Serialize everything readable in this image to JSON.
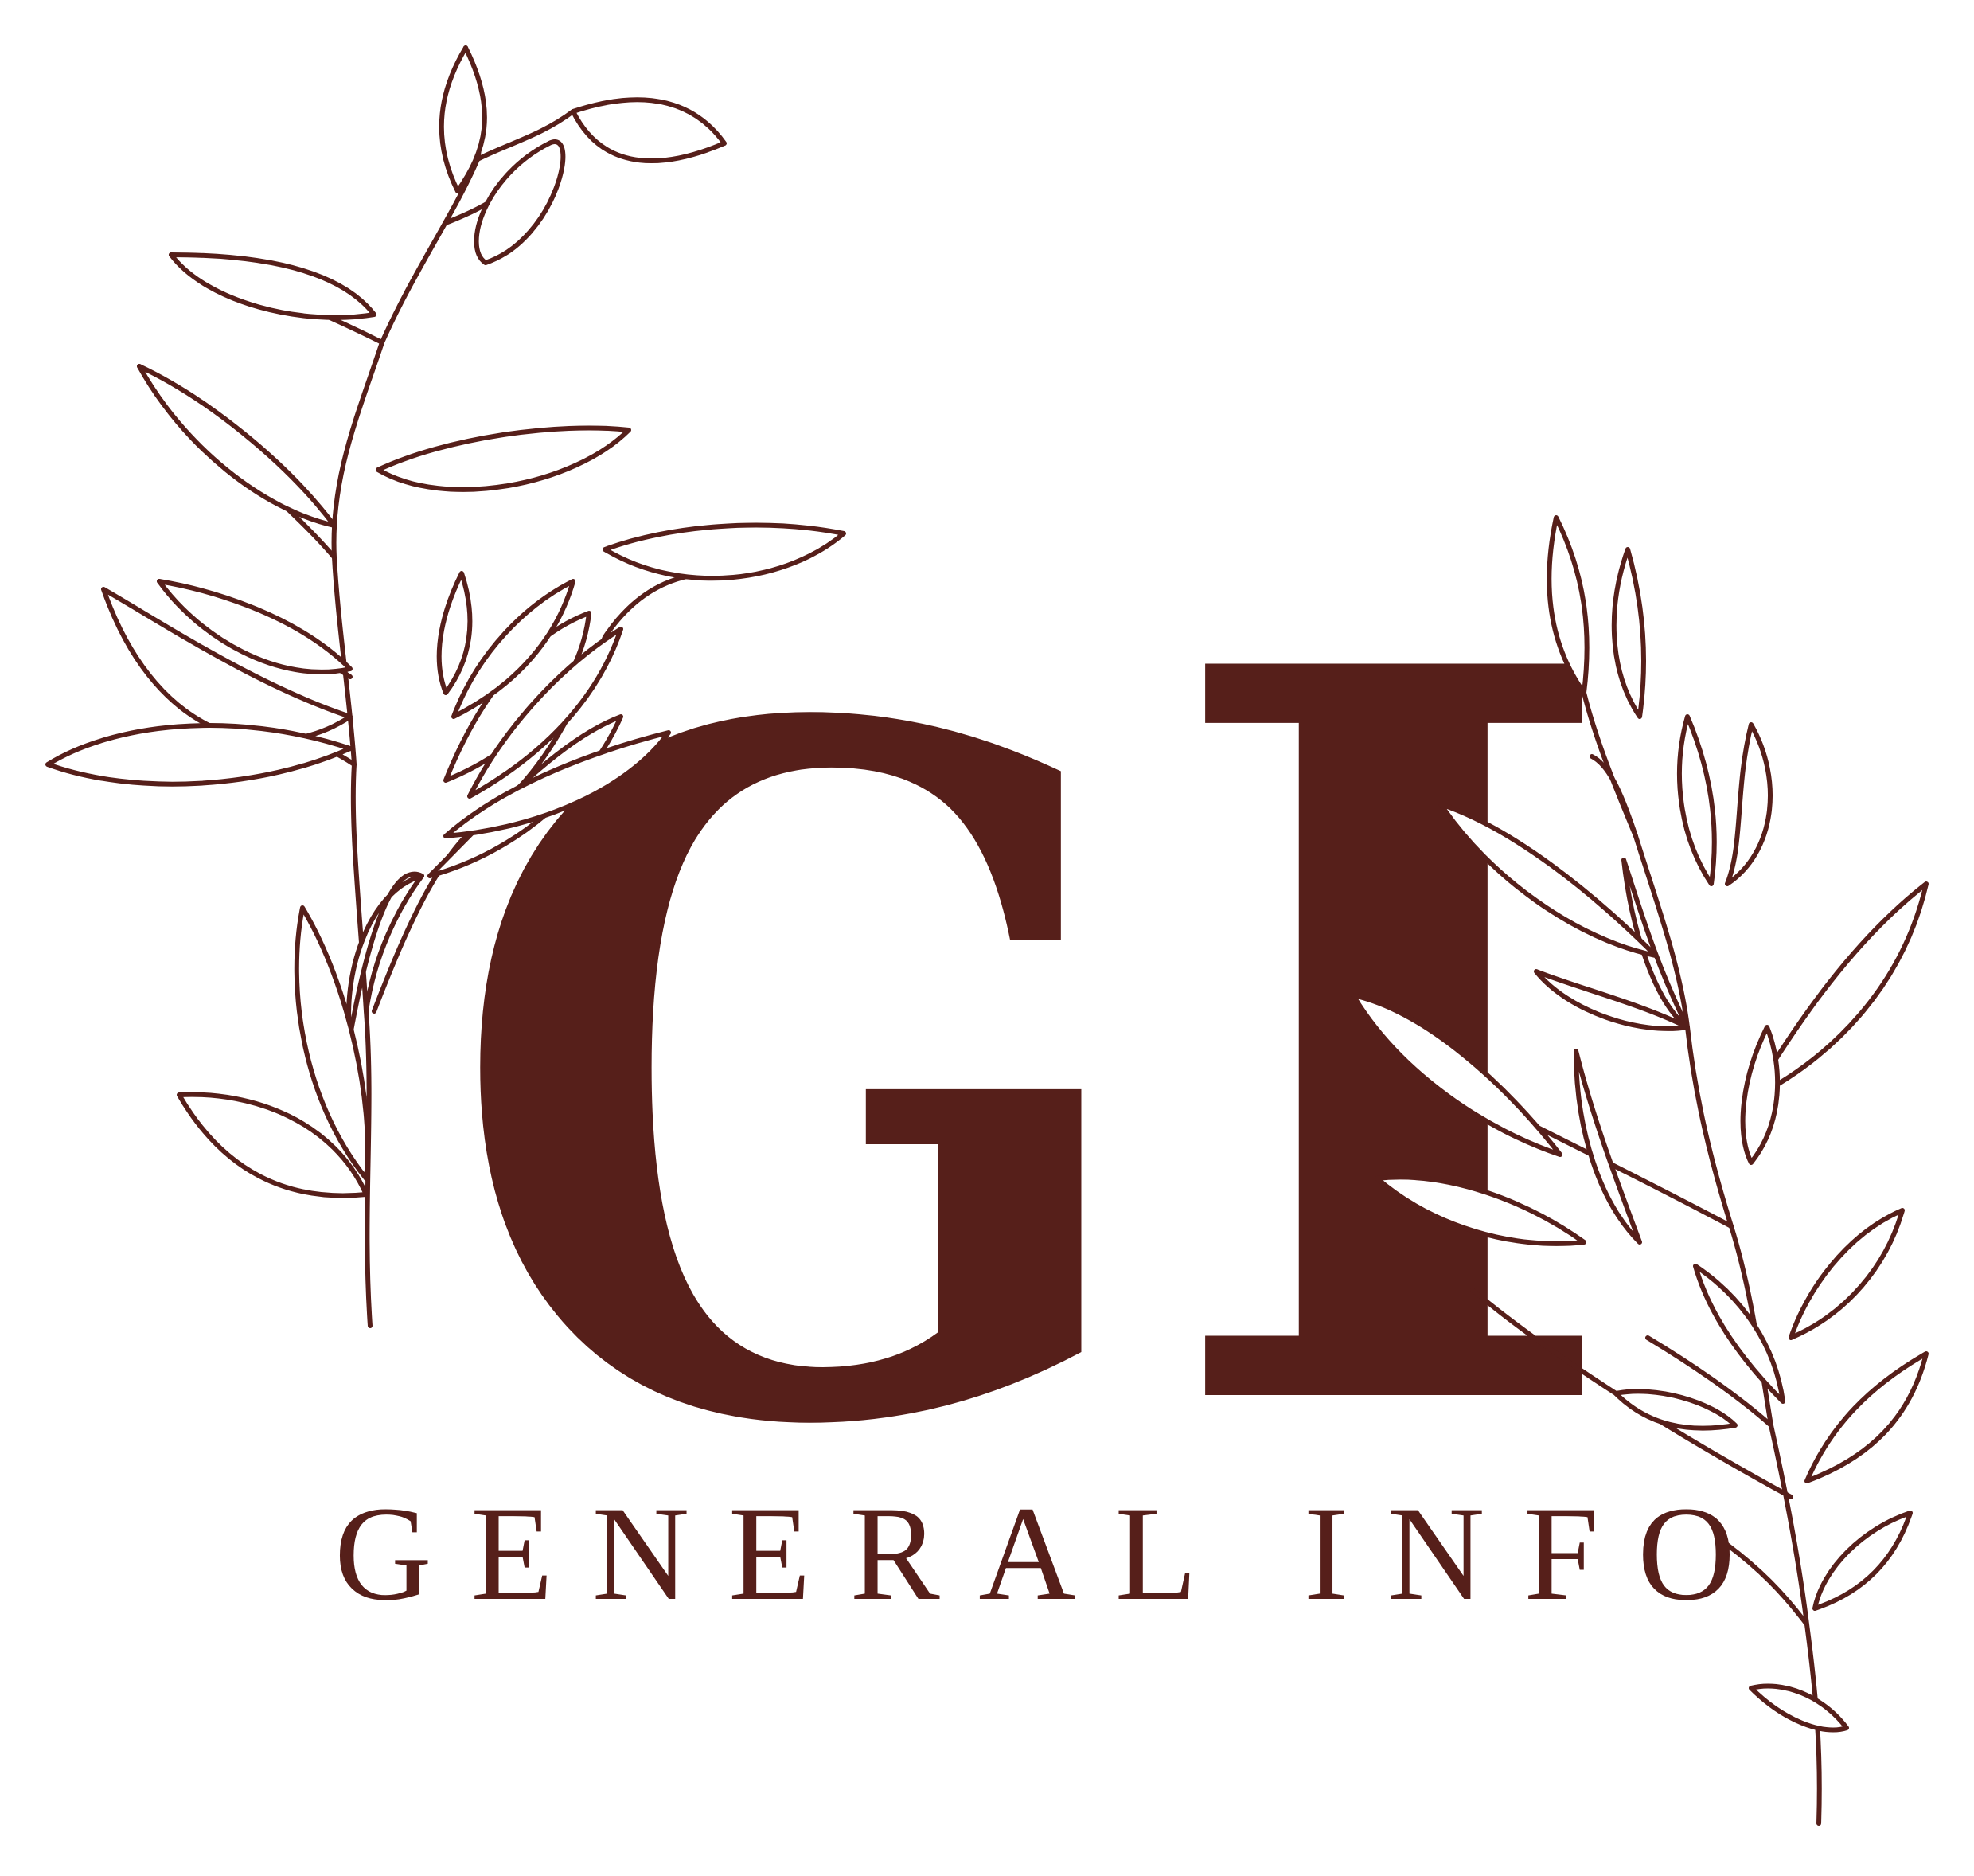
{
  "logo": {
    "monogram": {
      "letter_g": "G",
      "letter_i": "I"
    },
    "wordmark": "GENERAL INFO",
    "colors": {
      "brand": "#561f1a",
      "background": "#ffffff"
    },
    "decoration": "leaf-branch-outline"
  }
}
